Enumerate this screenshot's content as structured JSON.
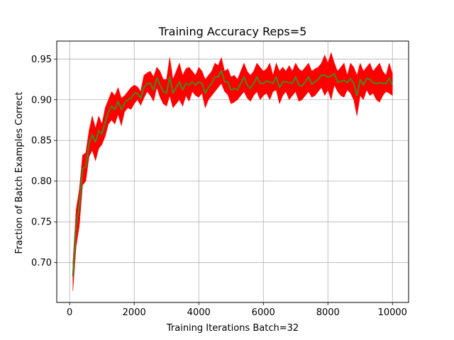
{
  "chart_data": {
    "type": "line",
    "title": "Training Accuracy Reps=5",
    "xlabel": "Training Iterations Batch=32",
    "ylabel": "Fraction of Batch Examples Correct",
    "xlim": [
      -400,
      10500
    ],
    "ylim": [
      0.651,
      0.972
    ],
    "xticks": [
      0,
      2000,
      4000,
      6000,
      8000,
      10000
    ],
    "yticks": [
      0.7,
      0.75,
      0.8,
      0.85,
      0.9,
      0.95
    ],
    "xtick_labels": [
      "0",
      "2000",
      "4000",
      "6000",
      "8000",
      "10000"
    ],
    "ytick_labels": [
      "0.70",
      "0.75",
      "0.80",
      "0.85",
      "0.90",
      "0.95"
    ],
    "grid": true,
    "series": [
      {
        "kind": "band",
        "color": "#ff0000",
        "x": [
          100,
          200,
          300,
          400,
          500,
          600,
          700,
          800,
          900,
          1000,
          1100,
          1200,
          1300,
          1400,
          1500,
          1600,
          1700,
          1800,
          1900,
          2000,
          2100,
          2200,
          2300,
          2400,
          2500,
          2600,
          2700,
          2800,
          2900,
          3000,
          3100,
          3200,
          3300,
          3400,
          3500,
          3600,
          3700,
          3800,
          3900,
          4000,
          4100,
          4200,
          4300,
          4400,
          4500,
          4600,
          4700,
          4800,
          4900,
          5000,
          5100,
          5200,
          5300,
          5400,
          5500,
          5600,
          5700,
          5800,
          5900,
          6000,
          6100,
          6200,
          6300,
          6400,
          6500,
          6600,
          6700,
          6800,
          6900,
          7000,
          7100,
          7200,
          7300,
          7400,
          7500,
          7600,
          7700,
          7800,
          7900,
          8000,
          8100,
          8200,
          8300,
          8400,
          8500,
          8600,
          8700,
          8800,
          8900,
          9000,
          9100,
          9200,
          9300,
          9400,
          9500,
          9600,
          9700,
          9800,
          9900,
          10000
        ],
        "lower": [
          0.665,
          0.72,
          0.745,
          0.795,
          0.8,
          0.83,
          0.838,
          0.825,
          0.84,
          0.845,
          0.855,
          0.87,
          0.875,
          0.87,
          0.882,
          0.868,
          0.885,
          0.89,
          0.888,
          0.895,
          0.9,
          0.893,
          0.902,
          0.91,
          0.905,
          0.898,
          0.915,
          0.903,
          0.895,
          0.892,
          0.905,
          0.89,
          0.895,
          0.9,
          0.892,
          0.905,
          0.898,
          0.91,
          0.905,
          0.903,
          0.908,
          0.89,
          0.9,
          0.905,
          0.91,
          0.915,
          0.92,
          0.91,
          0.906,
          0.895,
          0.897,
          0.9,
          0.905,
          0.91,
          0.902,
          0.898,
          0.905,
          0.91,
          0.9,
          0.905,
          0.908,
          0.9,
          0.91,
          0.912,
          0.895,
          0.905,
          0.91,
          0.9,
          0.905,
          0.91,
          0.898,
          0.9,
          0.905,
          0.91,
          0.903,
          0.905,
          0.91,
          0.915,
          0.905,
          0.912,
          0.9,
          0.918,
          0.91,
          0.905,
          0.903,
          0.912,
          0.908,
          0.9,
          0.88,
          0.905,
          0.9,
          0.912,
          0.905,
          0.908,
          0.9,
          0.897,
          0.905,
          0.91,
          0.908,
          0.905
        ],
        "upper": [
          0.7,
          0.765,
          0.79,
          0.832,
          0.835,
          0.862,
          0.88,
          0.865,
          0.88,
          0.87,
          0.89,
          0.9,
          0.91,
          0.905,
          0.915,
          0.902,
          0.905,
          0.91,
          0.915,
          0.918,
          0.916,
          0.91,
          0.93,
          0.933,
          0.935,
          0.928,
          0.94,
          0.935,
          0.925,
          0.925,
          0.952,
          0.925,
          0.935,
          0.945,
          0.93,
          0.938,
          0.94,
          0.935,
          0.93,
          0.94,
          0.935,
          0.925,
          0.93,
          0.935,
          0.945,
          0.942,
          0.952,
          0.935,
          0.938,
          0.928,
          0.93,
          0.925,
          0.935,
          0.945,
          0.935,
          0.93,
          0.935,
          0.945,
          0.94,
          0.935,
          0.938,
          0.945,
          0.93,
          0.945,
          0.935,
          0.94,
          0.935,
          0.942,
          0.935,
          0.945,
          0.938,
          0.935,
          0.94,
          0.945,
          0.935,
          0.938,
          0.94,
          0.945,
          0.955,
          0.945,
          0.958,
          0.945,
          0.935,
          0.94,
          0.945,
          0.93,
          0.945,
          0.94,
          0.93,
          0.945,
          0.935,
          0.94,
          0.945,
          0.935,
          0.94,
          0.945,
          0.935,
          0.93,
          0.945,
          0.932
        ]
      },
      {
        "kind": "line",
        "color": "#4f7f1e",
        "x": [
          100,
          200,
          300,
          400,
          500,
          600,
          700,
          800,
          900,
          1000,
          1100,
          1200,
          1300,
          1400,
          1500,
          1600,
          1700,
          1800,
          1900,
          2000,
          2100,
          2200,
          2300,
          2400,
          2500,
          2600,
          2700,
          2800,
          2900,
          3000,
          3100,
          3200,
          3300,
          3400,
          3500,
          3600,
          3700,
          3800,
          3900,
          4000,
          4100,
          4200,
          4300,
          4400,
          4500,
          4600,
          4700,
          4800,
          4900,
          5000,
          5100,
          5200,
          5300,
          5400,
          5500,
          5600,
          5700,
          5800,
          5900,
          6000,
          6100,
          6200,
          6300,
          6400,
          6500,
          6600,
          6700,
          6800,
          6900,
          7000,
          7100,
          7200,
          7300,
          7400,
          7500,
          7600,
          7700,
          7800,
          7900,
          8000,
          8100,
          8200,
          8300,
          8400,
          8500,
          8600,
          8700,
          8800,
          8900,
          9000,
          9100,
          9200,
          9300,
          9400,
          9500,
          9600,
          9700,
          9800,
          9900,
          10000
        ],
        "y": [
          0.683,
          0.745,
          0.77,
          0.815,
          0.818,
          0.846,
          0.857,
          0.848,
          0.862,
          0.858,
          0.872,
          0.885,
          0.892,
          0.888,
          0.898,
          0.888,
          0.896,
          0.9,
          0.902,
          0.908,
          0.908,
          0.902,
          0.915,
          0.92,
          0.92,
          0.912,
          0.927,
          0.918,
          0.91,
          0.908,
          0.928,
          0.908,
          0.915,
          0.922,
          0.912,
          0.92,
          0.918,
          0.922,
          0.918,
          0.922,
          0.92,
          0.908,
          0.915,
          0.92,
          0.928,
          0.928,
          0.936,
          0.922,
          0.922,
          0.912,
          0.914,
          0.912,
          0.92,
          0.928,
          0.918,
          0.914,
          0.92,
          0.928,
          0.92,
          0.92,
          0.923,
          0.922,
          0.92,
          0.928,
          0.915,
          0.922,
          0.922,
          0.921,
          0.92,
          0.928,
          0.918,
          0.917,
          0.922,
          0.928,
          0.919,
          0.922,
          0.925,
          0.93,
          0.93,
          0.928,
          0.929,
          0.932,
          0.922,
          0.922,
          0.924,
          0.921,
          0.926,
          0.92,
          0.905,
          0.925,
          0.918,
          0.926,
          0.925,
          0.921,
          0.92,
          0.921,
          0.92,
          0.92,
          0.926,
          0.918
        ]
      }
    ]
  }
}
